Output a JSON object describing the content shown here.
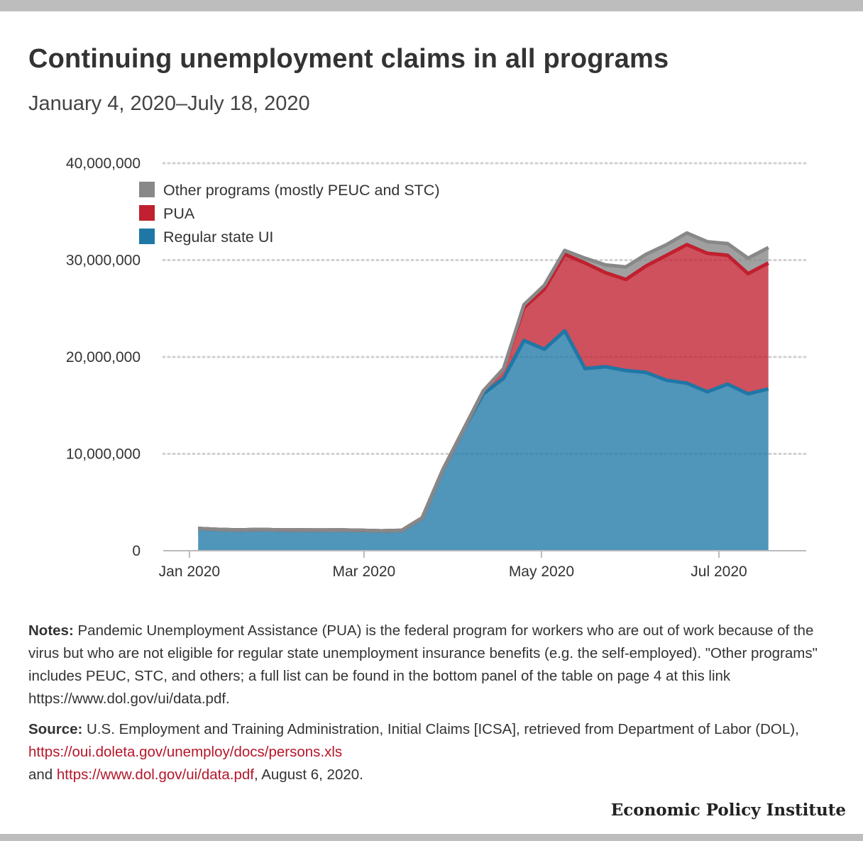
{
  "header": {
    "title": "Continuing unemployment claims in all programs",
    "subtitle": "January 4, 2020–July 18, 2020"
  },
  "chart_data": {
    "type": "area",
    "stacked": true,
    "x_format": "week-ending date",
    "x": [
      "2020-01-04",
      "2020-01-11",
      "2020-01-18",
      "2020-01-25",
      "2020-02-01",
      "2020-02-08",
      "2020-02-15",
      "2020-02-22",
      "2020-02-29",
      "2020-03-07",
      "2020-03-14",
      "2020-03-21",
      "2020-03-28",
      "2020-04-04",
      "2020-04-11",
      "2020-04-18",
      "2020-04-25",
      "2020-05-02",
      "2020-05-09",
      "2020-05-16",
      "2020-05-23",
      "2020-05-30",
      "2020-06-06",
      "2020-06-13",
      "2020-06-20",
      "2020-06-27",
      "2020-07-04",
      "2020-07-11",
      "2020-07-18"
    ],
    "series": [
      {
        "name": "Regular state UI",
        "color": "#1f77a6",
        "values": [
          2300000,
          2200000,
          2150000,
          2200000,
          2150000,
          2150000,
          2130000,
          2150000,
          2100000,
          2050000,
          2100000,
          3400000,
          8300000,
          12400000,
          16200000,
          17800000,
          21700000,
          20800000,
          22700000,
          18800000,
          19000000,
          18600000,
          18400000,
          17600000,
          17300000,
          16400000,
          17200000,
          16200000,
          16700000
        ]
      },
      {
        "name": "PUA",
        "color": "#c0202f",
        "values": [
          0,
          0,
          0,
          0,
          0,
          0,
          0,
          0,
          0,
          0,
          0,
          0,
          0,
          0,
          300000,
          1000000,
          3400000,
          6200000,
          7900000,
          10900000,
          9700000,
          9400000,
          11000000,
          12900000,
          14300000,
          14300000,
          13300000,
          12400000,
          13000000
        ]
      },
      {
        "name": "Other programs (mostly PEUC and STC)",
        "color": "#888888",
        "values": [
          0,
          0,
          0,
          0,
          0,
          0,
          0,
          0,
          0,
          0,
          0,
          0,
          0,
          0,
          0,
          0,
          300000,
          400000,
          400000,
          500000,
          800000,
          1300000,
          1200000,
          1100000,
          1200000,
          1200000,
          1200000,
          1600000,
          1600000
        ]
      }
    ],
    "y_ticks": [
      "0",
      "10,000,000",
      "20,000,000",
      "30,000,000",
      "40,000,000"
    ],
    "x_ticks": [
      {
        "label": "Jan 2020",
        "date": "2020-01-01"
      },
      {
        "label": "Mar 2020",
        "date": "2020-03-01"
      },
      {
        "label": "May 2020",
        "date": "2020-05-01"
      },
      {
        "label": "Jul 2020",
        "date": "2020-07-01"
      }
    ],
    "ylim": [
      0,
      40000000
    ],
    "xlim": [
      "2019-12-23",
      "2020-07-31"
    ],
    "grid": "horizontal dotted",
    "legend_position": "top-left"
  },
  "notes": {
    "label": "Notes:",
    "text": " Pandemic Unemployment Assistance (PUA) is the federal program for workers who are out of work because of the virus but who are not eligible for regular state unemployment insurance benefits (e.g. the self-employed). \"Other programs\" includes PEUC, STC, and others; a full list can be found in the bottom panel of the table on page 4 at this link https://www.dol.gov/ui/data.pdf."
  },
  "source": {
    "label": "Source:",
    "text1": " U.S. Employment and Training Administration, Initial Claims [ICSA], retrieved from Department of Labor (DOL), ",
    "link1": "https://oui.doleta.gov/unemploy/docs/persons.xls",
    "text2": "and ",
    "link2": "https://www.dol.gov/ui/data.pdf",
    "text3": ", August 6, 2020."
  },
  "brand": "Economic Policy Institute"
}
